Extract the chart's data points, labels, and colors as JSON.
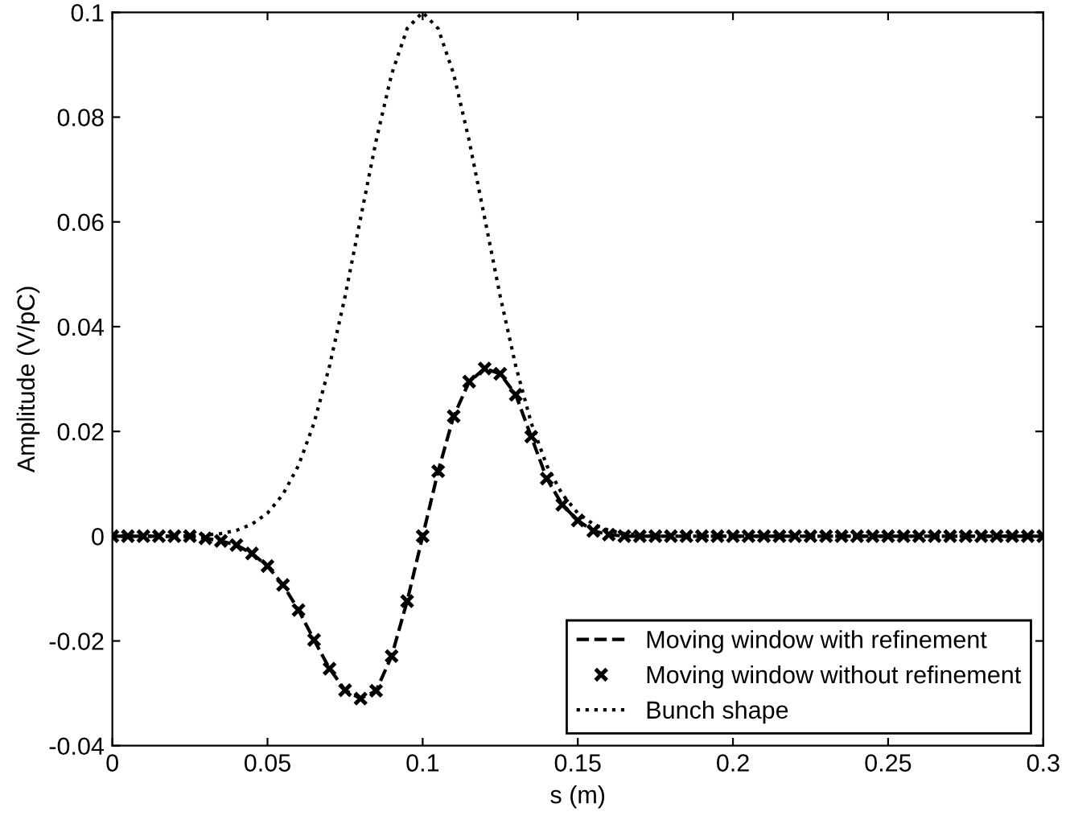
{
  "chart_data": {
    "type": "line",
    "xlabel": "s (m)",
    "ylabel": "Amplitude (V/pC)",
    "x": [
      0,
      0.005,
      0.01,
      0.015,
      0.02,
      0.025,
      0.03,
      0.035,
      0.04,
      0.045,
      0.05,
      0.055,
      0.06,
      0.065,
      0.07,
      0.075,
      0.08,
      0.085,
      0.09,
      0.095,
      0.1,
      0.105,
      0.11,
      0.115,
      0.12,
      0.125,
      0.13,
      0.135,
      0.14,
      0.145,
      0.15,
      0.155,
      0.16,
      0.165,
      0.17,
      0.175,
      0.18,
      0.185,
      0.19,
      0.195,
      0.2,
      0.205,
      0.21,
      0.215,
      0.22,
      0.225,
      0.23,
      0.235,
      0.24,
      0.245,
      0.25,
      0.255,
      0.26,
      0.265,
      0.27,
      0.275,
      0.28,
      0.285,
      0.29,
      0.295,
      0.3
    ],
    "series": [
      {
        "name": "Moving window with refinement",
        "color": "#000000",
        "line_style": "dashed",
        "marker": "none",
        "values": [
          0,
          0,
          0,
          0,
          0,
          0,
          -0.0004,
          -0.0009,
          -0.0017,
          -0.0033,
          -0.0057,
          -0.0093,
          -0.0141,
          -0.0198,
          -0.0253,
          -0.0294,
          -0.031,
          -0.0295,
          -0.0229,
          -0.0124,
          0,
          0.0124,
          0.0229,
          0.0295,
          0.032,
          0.031,
          0.027,
          0.019,
          0.011,
          0.006,
          0.003,
          0.001,
          0.0003,
          0,
          0,
          0,
          0,
          0,
          0,
          0,
          0,
          0,
          0,
          0,
          0,
          0,
          0,
          0,
          0,
          0,
          0,
          0,
          0,
          0,
          0,
          0,
          0,
          0,
          0,
          0,
          0
        ]
      },
      {
        "name": "Moving window without refinement",
        "color": "#000000",
        "type": "scatter",
        "marker": "cross",
        "values": [
          0,
          0,
          0,
          0,
          0,
          0,
          -0.0004,
          -0.0009,
          -0.0017,
          -0.0033,
          -0.0057,
          -0.0093,
          -0.0141,
          -0.0198,
          -0.0253,
          -0.0294,
          -0.031,
          -0.0295,
          -0.0229,
          -0.0124,
          0,
          0.0124,
          0.0229,
          0.0295,
          0.032,
          0.031,
          0.027,
          0.019,
          0.011,
          0.006,
          0.003,
          0.001,
          0.0003,
          0,
          0,
          0,
          0,
          0,
          0,
          0,
          0,
          0,
          0,
          0,
          0,
          0,
          0,
          0,
          0,
          0,
          0,
          0,
          0,
          0,
          0,
          0,
          0,
          0,
          0,
          0,
          0
        ]
      },
      {
        "name": "Bunch shape",
        "color": "#000000",
        "line_style": "dotted",
        "marker": "none",
        "values": [
          0,
          0,
          0,
          0,
          0,
          0,
          0.0002,
          0.0005,
          0.0011,
          0.0023,
          0.0044,
          0.008,
          0.0135,
          0.0216,
          0.0325,
          0.0458,
          0.0607,
          0.0755,
          0.0882,
          0.0969,
          0.1,
          0.0969,
          0.0882,
          0.0755,
          0.0607,
          0.0458,
          0.0325,
          0.0216,
          0.0135,
          0.008,
          0.0044,
          0.0023,
          0.0011,
          0.0005,
          0.0002,
          0,
          0,
          0,
          0,
          0,
          0,
          0,
          0,
          0,
          0,
          0,
          0,
          0,
          0,
          0,
          0,
          0,
          0,
          0,
          0,
          0,
          0,
          0,
          0,
          0,
          0
        ]
      }
    ],
    "xlim": [
      0,
      0.3
    ],
    "xticks": [
      0,
      0.05,
      0.1,
      0.15,
      0.2,
      0.25,
      0.3
    ],
    "ylim": [
      -0.04,
      0.1
    ],
    "yticks": [
      -0.04,
      -0.02,
      0,
      0.02,
      0.04,
      0.06,
      0.08,
      0.1
    ],
    "grid": false,
    "legend": "bottom right"
  }
}
